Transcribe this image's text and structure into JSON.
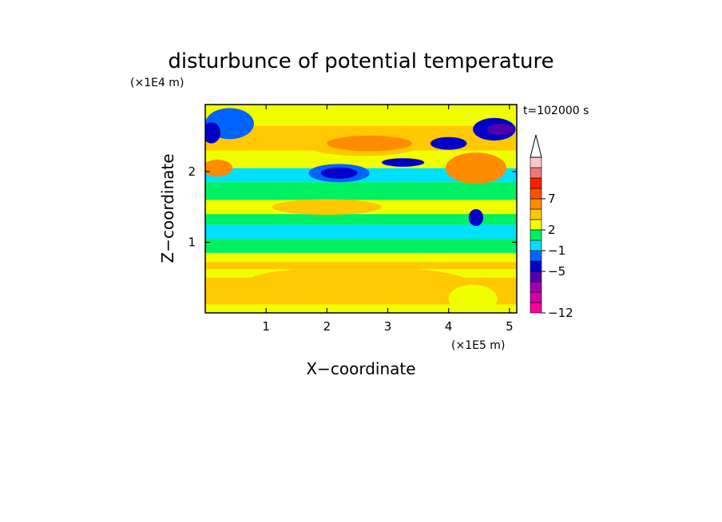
{
  "chart_data": {
    "type": "heatmap",
    "title": "disturbunce of potential temperature",
    "time_label": "t=102000 s",
    "xlabel": "X−coordinate",
    "ylabel": "Z−coordinate",
    "x_unit": "(×1E5 m)",
    "y_unit": "(×1E4 m)",
    "xlim": [
      0,
      5.12
    ],
    "ylim": [
      0,
      2.95
    ],
    "x_ticks": [
      {
        "value": 1,
        "label": "1"
      },
      {
        "value": 2,
        "label": "2"
      },
      {
        "value": 3,
        "label": "3"
      },
      {
        "value": 4,
        "label": "4"
      },
      {
        "value": 5,
        "label": "5"
      }
    ],
    "y_ticks": [
      {
        "value": 1,
        "label": "1"
      },
      {
        "value": 2,
        "label": "2"
      }
    ],
    "colorbar": {
      "extend_max": true,
      "levels": [
        {
          "color": "#ff00a0",
          "label": "−12"
        },
        {
          "color": "#d200a8",
          "label": ""
        },
        {
          "color": "#a000b4",
          "label": ""
        },
        {
          "color": "#5000aa",
          "label": ""
        },
        {
          "color": "#0000c8",
          "label": "−5"
        },
        {
          "color": "#0064ff",
          "label": ""
        },
        {
          "color": "#00e0ff",
          "label": "−1"
        },
        {
          "color": "#00f064",
          "label": ""
        },
        {
          "color": "#f0ff00",
          "label": "2"
        },
        {
          "color": "#ffc800",
          "label": ""
        },
        {
          "color": "#ff8c00",
          "label": ""
        },
        {
          "color": "#ff5000",
          "label": "7"
        },
        {
          "color": "#ff1e00",
          "label": ""
        },
        {
          "color": "#f07878",
          "label": ""
        },
        {
          "color": "#ffc8c8",
          "label": ""
        }
      ]
    },
    "field_bands": [
      {
        "z": [
          0.0,
          0.12
        ],
        "level": 8
      },
      {
        "z": [
          0.12,
          0.5
        ],
        "level": 9
      },
      {
        "z": [
          0.5,
          0.62
        ],
        "level": 8
      },
      {
        "z": [
          0.62,
          0.72
        ],
        "level": 9
      },
      {
        "z": [
          0.72,
          0.85
        ],
        "level": 8
      },
      {
        "z": [
          0.85,
          1.05
        ],
        "level": 7
      },
      {
        "z": [
          1.05,
          1.25
        ],
        "level": 6
      },
      {
        "z": [
          1.25,
          1.4
        ],
        "level": 7
      },
      {
        "z": [
          1.4,
          1.6
        ],
        "level": 8
      },
      {
        "z": [
          1.6,
          1.85
        ],
        "level": 7
      },
      {
        "z": [
          1.85,
          2.05
        ],
        "level": 6
      },
      {
        "z": [
          2.05,
          2.3
        ],
        "level": 8
      },
      {
        "z": [
          2.3,
          2.65
        ],
        "level": 9
      },
      {
        "z": [
          2.65,
          2.95
        ],
        "level": 8
      }
    ],
    "field_blobs": [
      {
        "x": 2.6,
        "z": 2.4,
        "rx": 1.0,
        "rz": 0.18,
        "level": 9
      },
      {
        "x": 2.7,
        "z": 2.4,
        "rx": 0.7,
        "rz": 0.11,
        "level": 10
      },
      {
        "x": 2.2,
        "z": 1.98,
        "rx": 0.5,
        "rz": 0.13,
        "level": 5
      },
      {
        "x": 2.2,
        "z": 1.98,
        "rx": 0.3,
        "rz": 0.08,
        "level": 4
      },
      {
        "x": 3.25,
        "z": 2.13,
        "rx": 0.35,
        "rz": 0.06,
        "level": 4
      },
      {
        "x": 2.0,
        "z": 1.5,
        "rx": 0.9,
        "rz": 0.11,
        "level": 9
      },
      {
        "x": 0.4,
        "z": 2.68,
        "rx": 0.4,
        "rz": 0.22,
        "level": 5
      },
      {
        "x": 0.1,
        "z": 2.55,
        "rx": 0.15,
        "rz": 0.15,
        "level": 4
      },
      {
        "x": 0.2,
        "z": 2.05,
        "rx": 0.25,
        "rz": 0.12,
        "level": 10
      },
      {
        "x": 4.0,
        "z": 2.4,
        "rx": 0.3,
        "rz": 0.09,
        "level": 4
      },
      {
        "x": 4.75,
        "z": 2.6,
        "rx": 0.35,
        "rz": 0.16,
        "level": 4
      },
      {
        "x": 4.85,
        "z": 2.6,
        "rx": 0.22,
        "rz": 0.08,
        "level": 3
      },
      {
        "x": 4.45,
        "z": 2.05,
        "rx": 0.5,
        "rz": 0.22,
        "level": 10
      },
      {
        "x": 4.45,
        "z": 1.35,
        "rx": 0.12,
        "rz": 0.12,
        "level": 4
      },
      {
        "x": 2.5,
        "z": 0.45,
        "rx": 1.8,
        "rz": 0.2,
        "level": 9
      },
      {
        "x": 4.4,
        "z": 0.2,
        "rx": 0.4,
        "rz": 0.2,
        "level": 8
      }
    ]
  }
}
